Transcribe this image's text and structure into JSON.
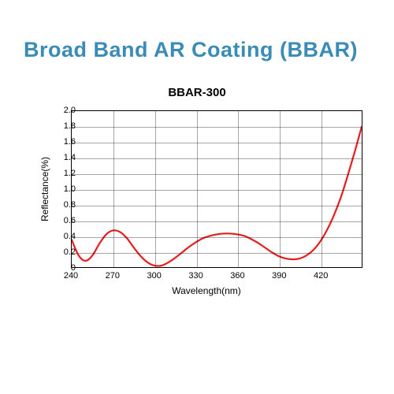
{
  "main_title": "Broad  Band AR Coating (BBAR)",
  "chart": {
    "type": "line",
    "title": "BBAR-300",
    "x_axis_title": "Wavelength(nm)",
    "y_axis_title": "Reflectance(%)",
    "xlim": [
      240,
      450
    ],
    "ylim": [
      0,
      2.0
    ],
    "x_ticks": [
      240,
      270,
      300,
      330,
      360,
      390,
      420
    ],
    "y_ticks": [
      0,
      0.2,
      0.4,
      0.6,
      0.8,
      1.0,
      1.2,
      1.4,
      1.6,
      1.8,
      2.0
    ],
    "y_tick_labels": [
      "0",
      "0.2",
      "0.4",
      "0.6",
      "0.8",
      "1.0",
      "1.2",
      "1.4",
      "1.6",
      "1.8",
      "2.0"
    ],
    "grid_color": "#000000",
    "grid_opacity": 0.35,
    "border_color": "#000000",
    "border_width": 1.5,
    "background_color": "#ffffff",
    "title_color": "#3a8bb5",
    "title_fontsize": 27,
    "subtitle_fontsize": 15,
    "label_fontsize": 12,
    "tick_fontsize": 11,
    "line_color": "#e81c1c",
    "line_width": 2.2,
    "data_points": [
      [
        240,
        0.35
      ],
      [
        245,
        0.15
      ],
      [
        250,
        0.08
      ],
      [
        255,
        0.15
      ],
      [
        260,
        0.3
      ],
      [
        265,
        0.42
      ],
      [
        270,
        0.47
      ],
      [
        275,
        0.45
      ],
      [
        280,
        0.37
      ],
      [
        285,
        0.25
      ],
      [
        290,
        0.14
      ],
      [
        295,
        0.06
      ],
      [
        300,
        0.02
      ],
      [
        305,
        0.02
      ],
      [
        310,
        0.06
      ],
      [
        315,
        0.12
      ],
      [
        320,
        0.19
      ],
      [
        325,
        0.26
      ],
      [
        330,
        0.32
      ],
      [
        335,
        0.37
      ],
      [
        340,
        0.4
      ],
      [
        345,
        0.42
      ],
      [
        350,
        0.43
      ],
      [
        355,
        0.43
      ],
      [
        360,
        0.42
      ],
      [
        365,
        0.4
      ],
      [
        370,
        0.36
      ],
      [
        375,
        0.31
      ],
      [
        380,
        0.25
      ],
      [
        385,
        0.19
      ],
      [
        390,
        0.14
      ],
      [
        395,
        0.11
      ],
      [
        400,
        0.1
      ],
      [
        405,
        0.11
      ],
      [
        410,
        0.15
      ],
      [
        415,
        0.22
      ],
      [
        420,
        0.33
      ],
      [
        425,
        0.48
      ],
      [
        430,
        0.67
      ],
      [
        435,
        0.9
      ],
      [
        440,
        1.18
      ],
      [
        445,
        1.48
      ],
      [
        450,
        1.8
      ]
    ]
  }
}
